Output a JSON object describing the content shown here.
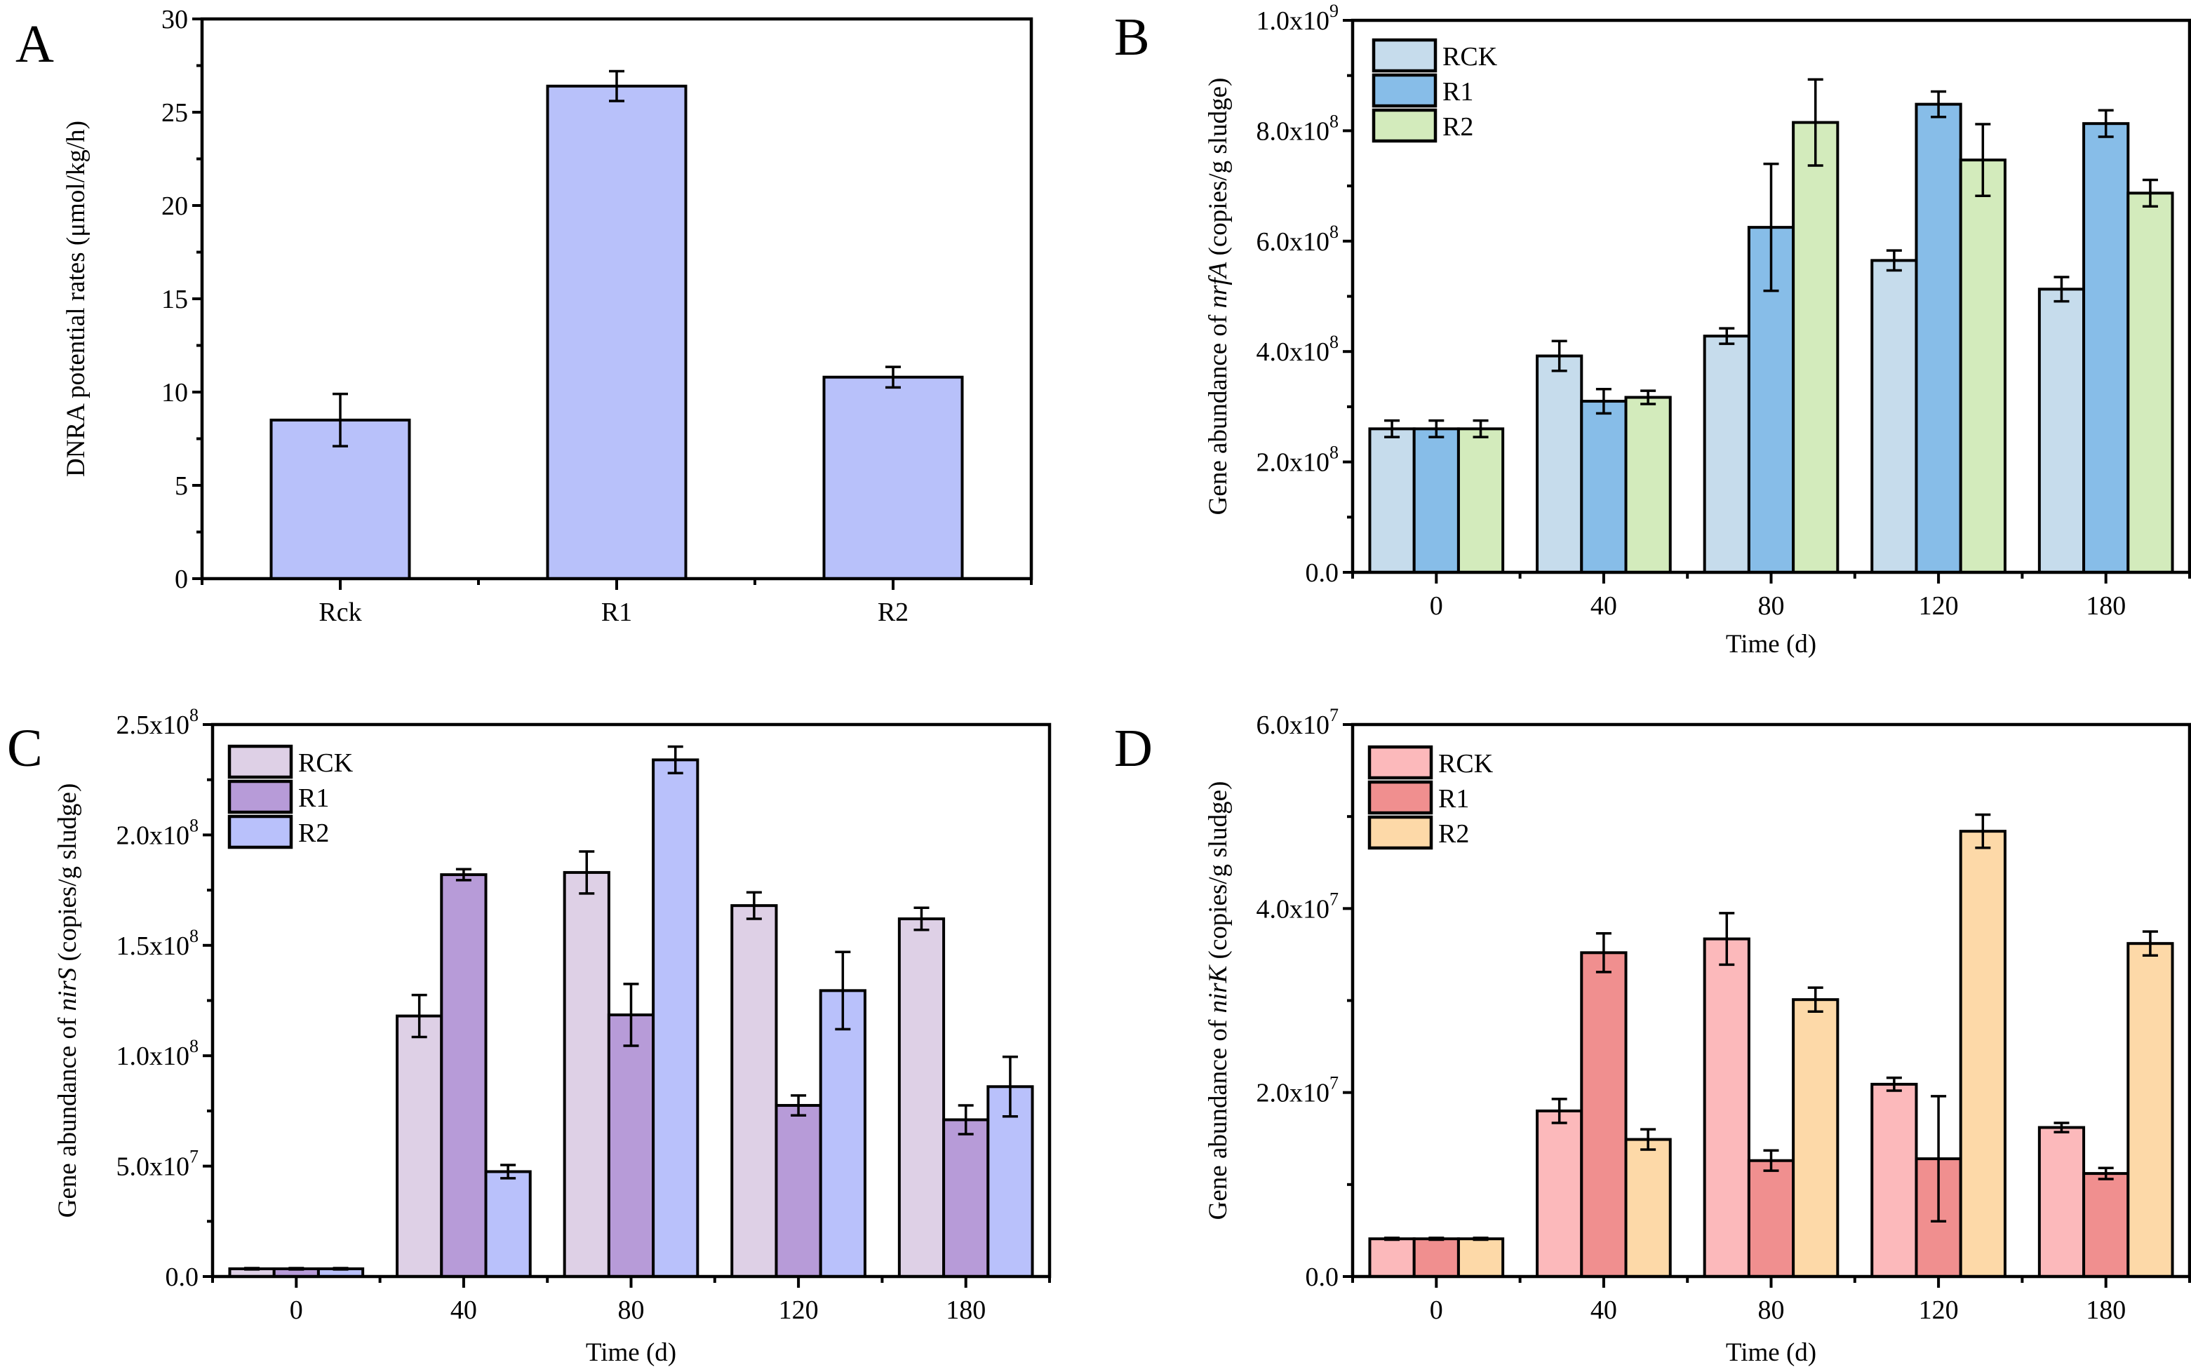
{
  "figure": {
    "panels": [
      "A",
      "B",
      "C",
      "D"
    ]
  },
  "chart_data": [
    {
      "id": "A",
      "panel_label": "A",
      "type": "bar",
      "title": "",
      "xlabel": "",
      "ylabel": "DNRA potential rates (μmol/kg/h)",
      "ylabel_italic_part": "",
      "categories": [
        "Rck",
        "R1",
        "R2"
      ],
      "ylim": [
        0,
        30
      ],
      "yticks": [
        0,
        5,
        10,
        15,
        20,
        25,
        30
      ],
      "ytick_labels": [
        "0",
        "5",
        "10",
        "15",
        "20",
        "25",
        "30"
      ],
      "y_minor_step": 2.5,
      "grid": false,
      "legend": null,
      "series": [
        {
          "name": "DNRA potential rate",
          "color": "#b8c1fa",
          "values": [
            8.5,
            26.4,
            10.8
          ],
          "errors": [
            1.4,
            0.8,
            0.55
          ]
        }
      ]
    },
    {
      "id": "B",
      "panel_label": "B",
      "type": "bar",
      "title": "",
      "xlabel": "Time (d)",
      "ylabel_prefix": "Gene abundance of ",
      "ylabel_italic": "nrfA",
      "ylabel_suffix": " (copies/g sludge)",
      "categories": [
        "0",
        "40",
        "80",
        "120",
        "180"
      ],
      "ylim": [
        0,
        1000000000
      ],
      "yticks": [
        0,
        200000000,
        400000000,
        600000000,
        800000000,
        1000000000
      ],
      "ytick_labels": [
        {
          "mant": "0.0",
          "exp": ""
        },
        {
          "mant": "2.0x10",
          "exp": "8"
        },
        {
          "mant": "4.0x10",
          "exp": "8"
        },
        {
          "mant": "6.0x10",
          "exp": "8"
        },
        {
          "mant": "8.0x10",
          "exp": "8"
        },
        {
          "mant": "1.0x10",
          "exp": "9"
        }
      ],
      "y_minor_step": 100000000,
      "grid": false,
      "legend": "top-left",
      "series": [
        {
          "name": "RCK",
          "color": "#c6dcec",
          "values": [
            260000000,
            392000000,
            428000000,
            565000000,
            513000000
          ],
          "errors": [
            15000000,
            27000000,
            14000000,
            18000000,
            22000000
          ]
        },
        {
          "name": "R1",
          "color": "#87bde8",
          "values": [
            260000000,
            310000000,
            625000000,
            848000000,
            813000000
          ],
          "errors": [
            15000000,
            22000000,
            115000000,
            23000000,
            24000000
          ]
        },
        {
          "name": "R2",
          "color": "#d3ebbc",
          "values": [
            260000000,
            317000000,
            815000000,
            747000000,
            687000000
          ],
          "errors": [
            15000000,
            12000000,
            78000000,
            65000000,
            24000000
          ]
        }
      ]
    },
    {
      "id": "C",
      "panel_label": "C",
      "type": "bar",
      "title": "",
      "xlabel": "Time (d)",
      "ylabel_prefix": "Gene abundance of ",
      "ylabel_italic": "nirS",
      "ylabel_suffix": " (copies/g sludge)",
      "categories": [
        "0",
        "40",
        "80",
        "120",
        "180"
      ],
      "ylim": [
        0,
        250000000
      ],
      "yticks": [
        0,
        50000000,
        100000000,
        150000000,
        200000000,
        250000000
      ],
      "ytick_labels": [
        {
          "mant": "0.0",
          "exp": ""
        },
        {
          "mant": "5.0x10",
          "exp": "7"
        },
        {
          "mant": "1.0x10",
          "exp": "8"
        },
        {
          "mant": "1.5x10",
          "exp": "8"
        },
        {
          "mant": "2.0x10",
          "exp": "8"
        },
        {
          "mant": "2.5x10",
          "exp": "8"
        }
      ],
      "y_minor_step": 25000000,
      "grid": false,
      "legend": "top-left",
      "series": [
        {
          "name": "RCK",
          "color": "#ded0e6",
          "values": [
            3500000,
            118000000,
            183000000,
            168000000,
            162000000
          ],
          "errors": [
            300000,
            9500000,
            9500000,
            6000000,
            5000000
          ]
        },
        {
          "name": "R1",
          "color": "#b79bd8",
          "values": [
            3500000,
            182000000,
            118500000,
            77500000,
            71000000
          ],
          "errors": [
            300000,
            2500000,
            14000000,
            4500000,
            6500000
          ]
        },
        {
          "name": "R2",
          "color": "#b9c1fb",
          "values": [
            3500000,
            47500000,
            234000000,
            129500000,
            86000000
          ],
          "errors": [
            300000,
            3000000,
            6000000,
            17500000,
            13500000
          ]
        }
      ]
    },
    {
      "id": "D",
      "panel_label": "D",
      "type": "bar",
      "title": "",
      "xlabel": "Time (d)",
      "ylabel_prefix": "Gene abundance of ",
      "ylabel_italic": "nirK",
      "ylabel_suffix": " (copies/g sludge)",
      "categories": [
        "0",
        "40",
        "80",
        "120",
        "180"
      ],
      "ylim": [
        0,
        60000000
      ],
      "yticks": [
        0,
        20000000,
        40000000,
        60000000
      ],
      "ytick_labels": [
        {
          "mant": "0.0",
          "exp": ""
        },
        {
          "mant": "2.0x10",
          "exp": "7"
        },
        {
          "mant": "4.0x10",
          "exp": "7"
        },
        {
          "mant": "6.0x10",
          "exp": "7"
        }
      ],
      "y_minor_step": 10000000,
      "grid": false,
      "legend": "top-left",
      "series": [
        {
          "name": "RCK",
          "color": "#fcb9bb",
          "values": [
            4100000,
            18000000,
            36700000,
            20900000,
            16200000
          ],
          "errors": [
            100000,
            1300000,
            2800000,
            700000,
            500000
          ]
        },
        {
          "name": "R1",
          "color": "#f08f8f",
          "values": [
            4100000,
            35200000,
            12600000,
            12800000,
            11200000
          ],
          "errors": [
            100000,
            2100000,
            1100000,
            6800000,
            600000
          ]
        },
        {
          "name": "R2",
          "color": "#fdd9a8",
          "values": [
            4100000,
            14900000,
            30100000,
            48400000,
            36200000
          ],
          "errors": [
            100000,
            1100000,
            1300000,
            1800000,
            1300000
          ]
        }
      ]
    }
  ]
}
